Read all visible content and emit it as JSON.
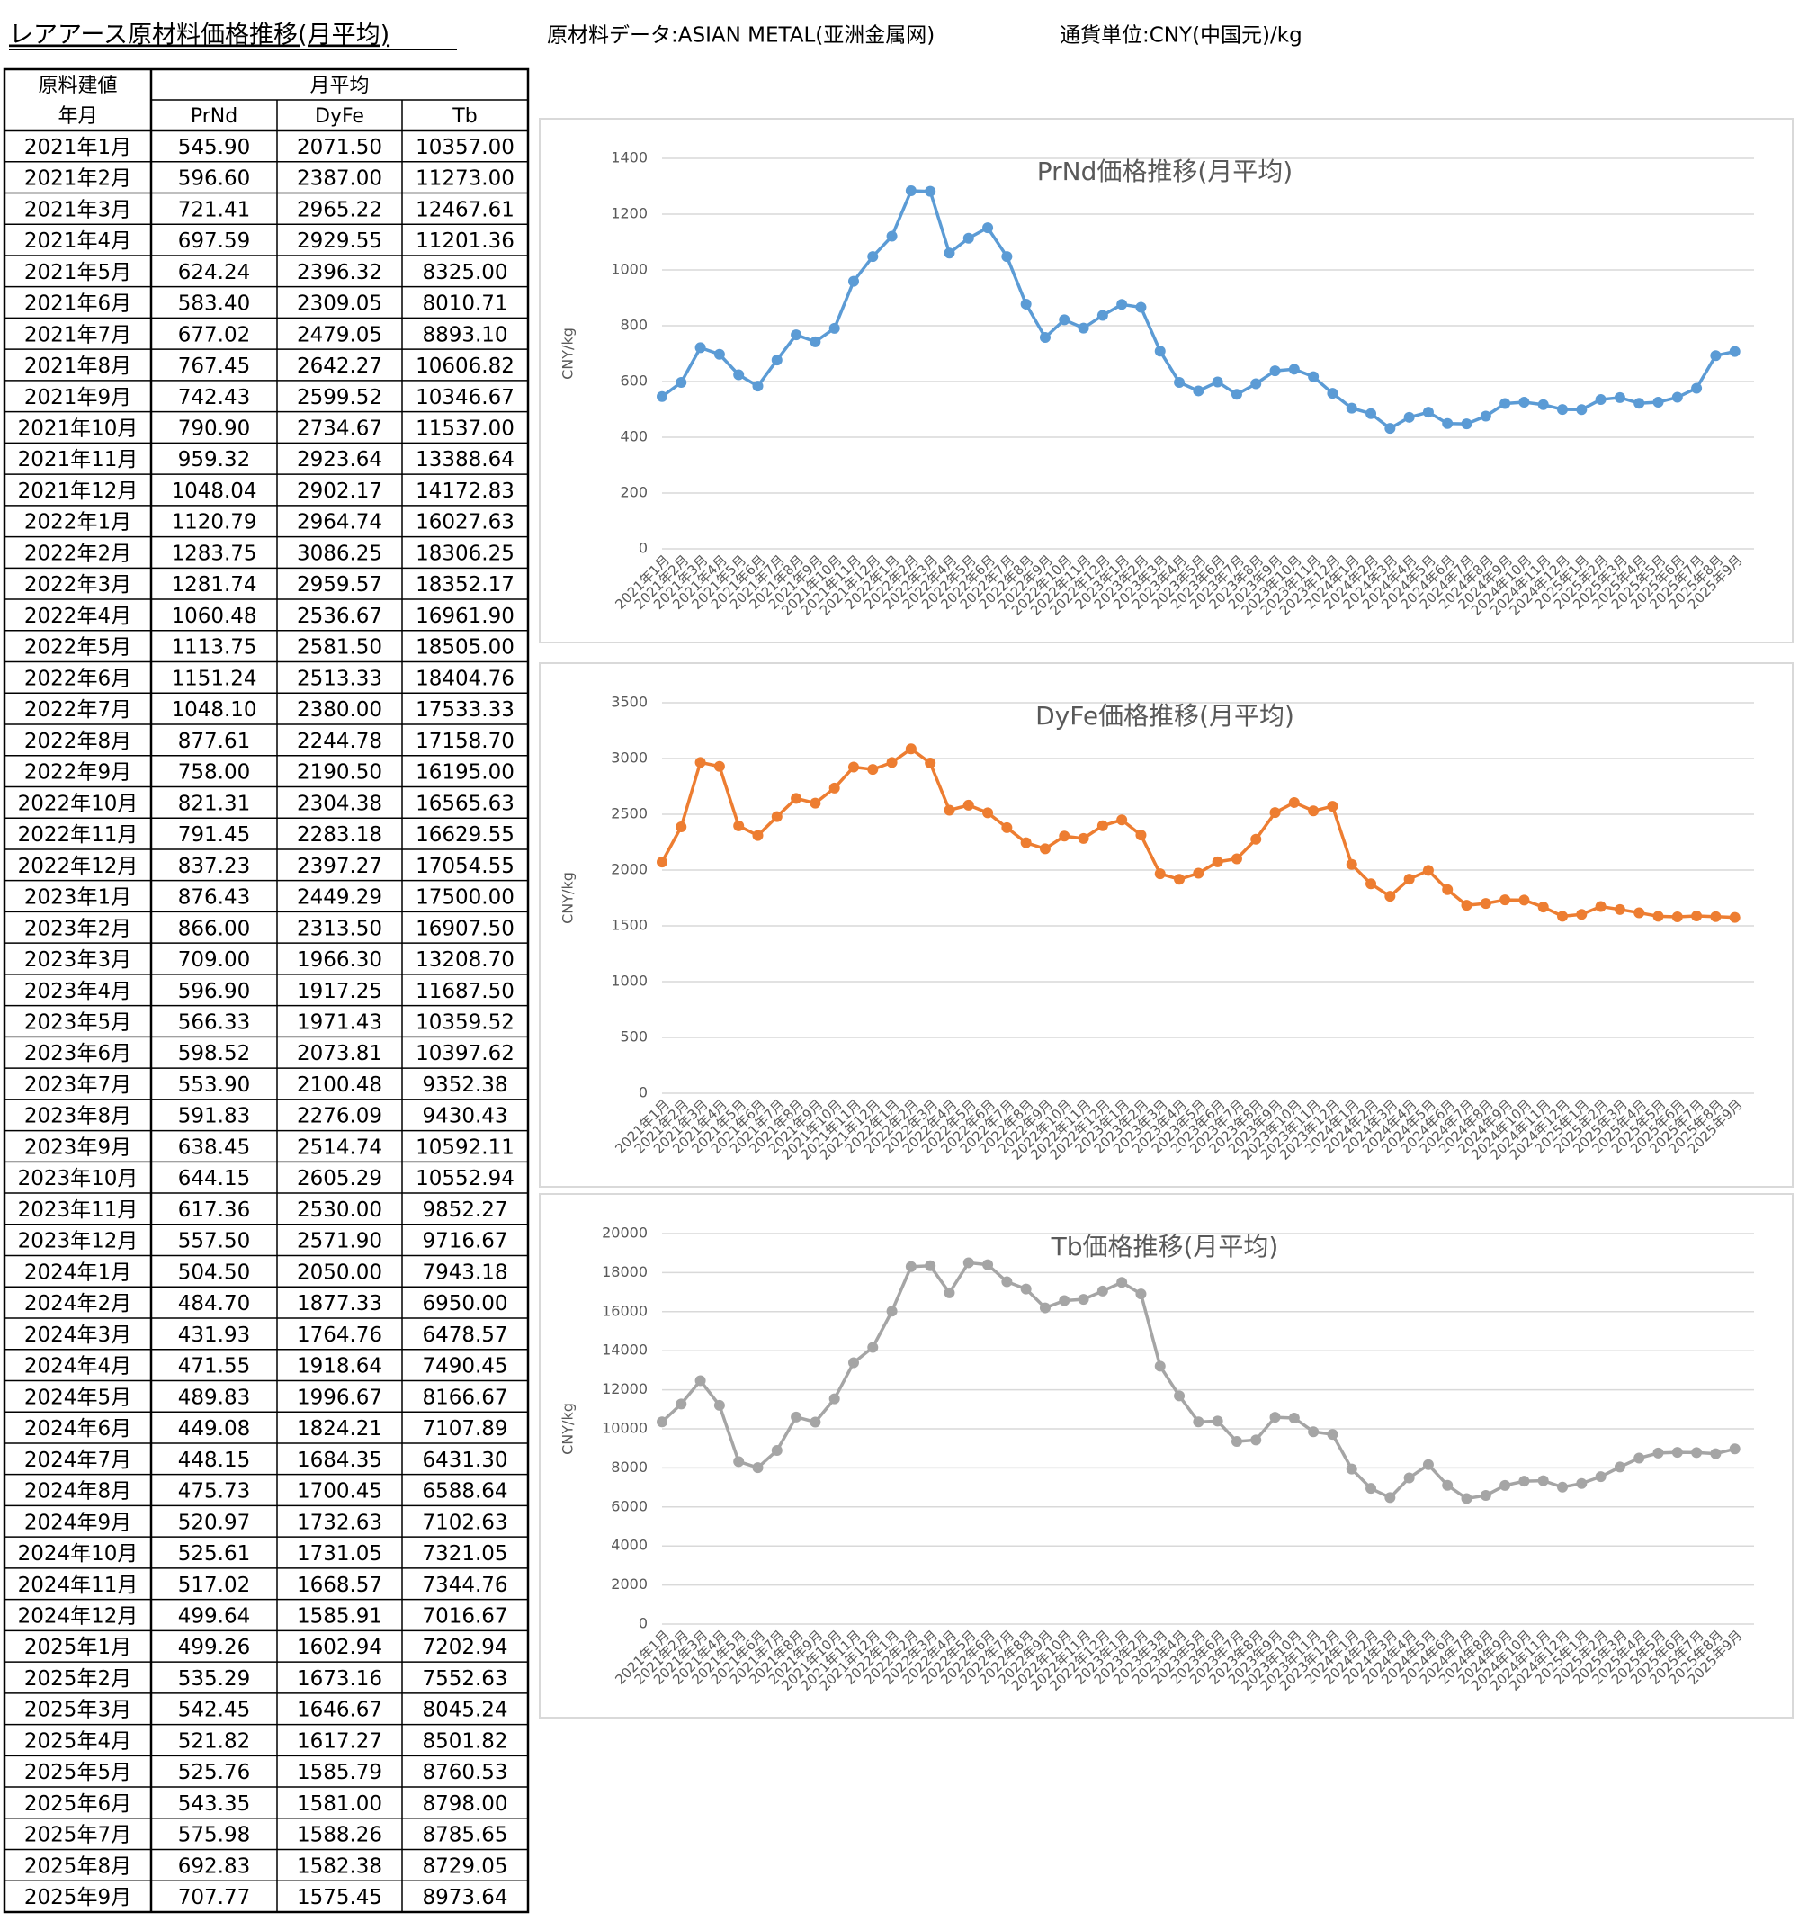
{
  "header": {
    "title": "レアアース原材料価格推移(月平均)",
    "source": "原材料データ:ASIAN METAL(亚洲金属网)",
    "currency": "通貨単位:CNY(中国元)/kg"
  },
  "table": {
    "corner": [
      "原料建値",
      "年月"
    ],
    "group": "月平均",
    "columns": [
      "PrNd",
      "DyFe",
      "Tb"
    ],
    "rows": [
      [
        "2021年1月",
        "545.90",
        "2071.50",
        "10357.00"
      ],
      [
        "2021年2月",
        "596.60",
        "2387.00",
        "11273.00"
      ],
      [
        "2021年3月",
        "721.41",
        "2965.22",
        "12467.61"
      ],
      [
        "2021年4月",
        "697.59",
        "2929.55",
        "11201.36"
      ],
      [
        "2021年5月",
        "624.24",
        "2396.32",
        "8325.00"
      ],
      [
        "2021年6月",
        "583.40",
        "2309.05",
        "8010.71"
      ],
      [
        "2021年7月",
        "677.02",
        "2479.05",
        "8893.10"
      ],
      [
        "2021年8月",
        "767.45",
        "2642.27",
        "10606.82"
      ],
      [
        "2021年9月",
        "742.43",
        "2599.52",
        "10346.67"
      ],
      [
        "2021年10月",
        "790.90",
        "2734.67",
        "11537.00"
      ],
      [
        "2021年11月",
        "959.32",
        "2923.64",
        "13388.64"
      ],
      [
        "2021年12月",
        "1048.04",
        "2902.17",
        "14172.83"
      ],
      [
        "2022年1月",
        "1120.79",
        "2964.74",
        "16027.63"
      ],
      [
        "2022年2月",
        "1283.75",
        "3086.25",
        "18306.25"
      ],
      [
        "2022年3月",
        "1281.74",
        "2959.57",
        "18352.17"
      ],
      [
        "2022年4月",
        "1060.48",
        "2536.67",
        "16961.90"
      ],
      [
        "2022年5月",
        "1113.75",
        "2581.50",
        "18505.00"
      ],
      [
        "2022年6月",
        "1151.24",
        "2513.33",
        "18404.76"
      ],
      [
        "2022年7月",
        "1048.10",
        "2380.00",
        "17533.33"
      ],
      [
        "2022年8月",
        "877.61",
        "2244.78",
        "17158.70"
      ],
      [
        "2022年9月",
        "758.00",
        "2190.50",
        "16195.00"
      ],
      [
        "2022年10月",
        "821.31",
        "2304.38",
        "16565.63"
      ],
      [
        "2022年11月",
        "791.45",
        "2283.18",
        "16629.55"
      ],
      [
        "2022年12月",
        "837.23",
        "2397.27",
        "17054.55"
      ],
      [
        "2023年1月",
        "876.43",
        "2449.29",
        "17500.00"
      ],
      [
        "2023年2月",
        "866.00",
        "2313.50",
        "16907.50"
      ],
      [
        "2023年3月",
        "709.00",
        "1966.30",
        "13208.70"
      ],
      [
        "2023年4月",
        "596.90",
        "1917.25",
        "11687.50"
      ],
      [
        "2023年5月",
        "566.33",
        "1971.43",
        "10359.52"
      ],
      [
        "2023年6月",
        "598.52",
        "2073.81",
        "10397.62"
      ],
      [
        "2023年7月",
        "553.90",
        "2100.48",
        "9352.38"
      ],
      [
        "2023年8月",
        "591.83",
        "2276.09",
        "9430.43"
      ],
      [
        "2023年9月",
        "638.45",
        "2514.74",
        "10592.11"
      ],
      [
        "2023年10月",
        "644.15",
        "2605.29",
        "10552.94"
      ],
      [
        "2023年11月",
        "617.36",
        "2530.00",
        "9852.27"
      ],
      [
        "2023年12月",
        "557.50",
        "2571.90",
        "9716.67"
      ],
      [
        "2024年1月",
        "504.50",
        "2050.00",
        "7943.18"
      ],
      [
        "2024年2月",
        "484.70",
        "1877.33",
        "6950.00"
      ],
      [
        "2024年3月",
        "431.93",
        "1764.76",
        "6478.57"
      ],
      [
        "2024年4月",
        "471.55",
        "1918.64",
        "7490.45"
      ],
      [
        "2024年5月",
        "489.83",
        "1996.67",
        "8166.67"
      ],
      [
        "2024年6月",
        "449.08",
        "1824.21",
        "7107.89"
      ],
      [
        "2024年7月",
        "448.15",
        "1684.35",
        "6431.30"
      ],
      [
        "2024年8月",
        "475.73",
        "1700.45",
        "6588.64"
      ],
      [
        "2024年9月",
        "520.97",
        "1732.63",
        "7102.63"
      ],
      [
        "2024年10月",
        "525.61",
        "1731.05",
        "7321.05"
      ],
      [
        "2024年11月",
        "517.02",
        "1668.57",
        "7344.76"
      ],
      [
        "2024年12月",
        "499.64",
        "1585.91",
        "7016.67"
      ],
      [
        "2025年1月",
        "499.26",
        "1602.94",
        "7202.94"
      ],
      [
        "2025年2月",
        "535.29",
        "1673.16",
        "7552.63"
      ],
      [
        "2025年3月",
        "542.45",
        "1646.67",
        "8045.24"
      ],
      [
        "2025年4月",
        "521.82",
        "1617.27",
        "8501.82"
      ],
      [
        "2025年5月",
        "525.76",
        "1585.79",
        "8760.53"
      ],
      [
        "2025年6月",
        "543.35",
        "1581.00",
        "8798.00"
      ],
      [
        "2025年7月",
        "575.98",
        "1588.26",
        "8785.65"
      ],
      [
        "2025年8月",
        "692.83",
        "1582.38",
        "8729.05"
      ],
      [
        "2025年9月",
        "707.77",
        "1575.45",
        "8973.64"
      ]
    ]
  },
  "chart_data": [
    {
      "type": "line",
      "title": "PrNd価格推移(月平均)",
      "y_label": "CNY/kg",
      "color": "#5b9bd5",
      "grid": true,
      "ylim": [
        0,
        1400
      ],
      "yticks": [
        0,
        200,
        400,
        600,
        800,
        1000,
        1200,
        1400
      ],
      "categories": [
        "2021年1月",
        "2021年2月",
        "2021年3月",
        "2021年4月",
        "2021年5月",
        "2021年6月",
        "2021年7月",
        "2021年8月",
        "2021年9月",
        "2021年10月",
        "2021年11月",
        "2021年12月",
        "2022年1月",
        "2022年2月",
        "2022年3月",
        "2022年4月",
        "2022年5月",
        "2022年6月",
        "2022年7月",
        "2022年8月",
        "2022年9月",
        "2022年10月",
        "2022年11月",
        "2022年12月",
        "2023年1月",
        "2023年2月",
        "2023年3月",
        "2023年4月",
        "2023年5月",
        "2023年6月",
        "2023年7月",
        "2023年8月",
        "2023年9月",
        "2023年10月",
        "2023年11月",
        "2023年12月",
        "2024年1月",
        "2024年2月",
        "2024年3月",
        "2024年4月",
        "2024年5月",
        "2024年6月",
        "2024年7月",
        "2024年8月",
        "2024年9月",
        "2024年10月",
        "2024年11月",
        "2024年12月",
        "2025年1月",
        "2025年2月",
        "2025年3月",
        "2025年4月",
        "2025年5月",
        "2025年6月",
        "2025年7月",
        "2025年8月",
        "2025年9月"
      ],
      "values": [
        545.9,
        596.6,
        721.41,
        697.59,
        624.24,
        583.4,
        677.02,
        767.45,
        742.43,
        790.9,
        959.32,
        1048.04,
        1120.79,
        1283.75,
        1281.74,
        1060.48,
        1113.75,
        1151.24,
        1048.1,
        877.61,
        758,
        821.31,
        791.45,
        837.23,
        876.43,
        866,
        709,
        596.9,
        566.33,
        598.52,
        553.9,
        591.83,
        638.45,
        644.15,
        617.36,
        557.5,
        504.5,
        484.7,
        431.93,
        471.55,
        489.83,
        449.08,
        448.15,
        475.73,
        520.97,
        525.61,
        517.02,
        499.64,
        499.26,
        535.29,
        542.45,
        521.82,
        525.76,
        543.35,
        575.98,
        692.83,
        707.77
      ]
    },
    {
      "type": "line",
      "title": "DyFe価格推移(月平均)",
      "y_label": "CNY/kg",
      "color": "#ed7d31",
      "grid": true,
      "ylim": [
        0,
        3500
      ],
      "yticks": [
        0,
        500,
        1000,
        1500,
        2000,
        2500,
        3000,
        3500
      ],
      "categories": [
        "2021年1月",
        "2021年2月",
        "2021年3月",
        "2021年4月",
        "2021年5月",
        "2021年6月",
        "2021年7月",
        "2021年8月",
        "2021年9月",
        "2021年10月",
        "2021年11月",
        "2021年12月",
        "2022年1月",
        "2022年2月",
        "2022年3月",
        "2022年4月",
        "2022年5月",
        "2022年6月",
        "2022年7月",
        "2022年8月",
        "2022年9月",
        "2022年10月",
        "2022年11月",
        "2022年12月",
        "2023年1月",
        "2023年2月",
        "2023年3月",
        "2023年4月",
        "2023年5月",
        "2023年6月",
        "2023年7月",
        "2023年8月",
        "2023年9月",
        "2023年10月",
        "2023年11月",
        "2023年12月",
        "2024年1月",
        "2024年2月",
        "2024年3月",
        "2024年4月",
        "2024年5月",
        "2024年6月",
        "2024年7月",
        "2024年8月",
        "2024年9月",
        "2024年10月",
        "2024年11月",
        "2024年12月",
        "2025年1月",
        "2025年2月",
        "2025年3月",
        "2025年4月",
        "2025年5月",
        "2025年6月",
        "2025年7月",
        "2025年8月",
        "2025年9月"
      ],
      "values": [
        2071.5,
        2387,
        2965.22,
        2929.55,
        2396.32,
        2309.05,
        2479.05,
        2642.27,
        2599.52,
        2734.67,
        2923.64,
        2902.17,
        2964.74,
        3086.25,
        2959.57,
        2536.67,
        2581.5,
        2513.33,
        2380,
        2244.78,
        2190.5,
        2304.38,
        2283.18,
        2397.27,
        2449.29,
        2313.5,
        1966.3,
        1917.25,
        1971.43,
        2073.81,
        2100.48,
        2276.09,
        2514.74,
        2605.29,
        2530,
        2571.9,
        2050,
        1877.33,
        1764.76,
        1918.64,
        1996.67,
        1824.21,
        1684.35,
        1700.45,
        1732.63,
        1731.05,
        1668.57,
        1585.91,
        1602.94,
        1673.16,
        1646.67,
        1617.27,
        1585.79,
        1581,
        1588.26,
        1582.38,
        1575.45
      ]
    },
    {
      "type": "line",
      "title": "Tb価格推移(月平均)",
      "y_label": "CNY/kg",
      "color": "#a5a5a5",
      "grid": true,
      "ylim": [
        0,
        20000
      ],
      "yticks": [
        0,
        2000,
        4000,
        6000,
        8000,
        10000,
        12000,
        14000,
        16000,
        18000,
        20000
      ],
      "categories": [
        "2021年1月",
        "2021年2月",
        "2021年3月",
        "2021年4月",
        "2021年5月",
        "2021年6月",
        "2021年7月",
        "2021年8月",
        "2021年9月",
        "2021年10月",
        "2021年11月",
        "2021年12月",
        "2022年1月",
        "2022年2月",
        "2022年3月",
        "2022年4月",
        "2022年5月",
        "2022年6月",
        "2022年7月",
        "2022年8月",
        "2022年9月",
        "2022年10月",
        "2022年11月",
        "2022年12月",
        "2023年1月",
        "2023年2月",
        "2023年3月",
        "2023年4月",
        "2023年5月",
        "2023年6月",
        "2023年7月",
        "2023年8月",
        "2023年9月",
        "2023年10月",
        "2023年11月",
        "2023年12月",
        "2024年1月",
        "2024年2月",
        "2024年3月",
        "2024年4月",
        "2024年5月",
        "2024年6月",
        "2024年7月",
        "2024年8月",
        "2024年9月",
        "2024年10月",
        "2024年11月",
        "2024年12月",
        "2025年1月",
        "2025年2月",
        "2025年3月",
        "2025年4月",
        "2025年5月",
        "2025年6月",
        "2025年7月",
        "2025年8月",
        "2025年9月"
      ],
      "values": [
        10357,
        11273,
        12467.61,
        11201.36,
        8325,
        8010.71,
        8893.1,
        10606.82,
        10346.67,
        11537,
        13388.64,
        14172.83,
        16027.63,
        18306.25,
        18352.17,
        16961.9,
        18505,
        18404.76,
        17533.33,
        17158.7,
        16195,
        16565.63,
        16629.55,
        17054.55,
        17500,
        16907.5,
        13208.7,
        11687.5,
        10359.52,
        10397.62,
        9352.38,
        9430.43,
        10592.11,
        10552.94,
        9852.27,
        9716.67,
        7943.18,
        6950,
        6478.57,
        7490.45,
        8166.67,
        7107.89,
        6431.3,
        6588.64,
        7102.63,
        7321.05,
        7344.76,
        7016.67,
        7202.94,
        7552.63,
        8045.24,
        8501.82,
        8760.53,
        8798,
        8785.65,
        8729.05,
        8973.64
      ]
    }
  ]
}
